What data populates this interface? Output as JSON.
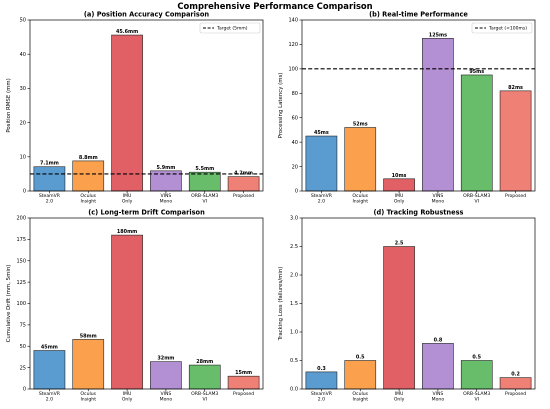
{
  "title": "Comprehensive Performance Comparison",
  "colors": {
    "steamvr": "#5a9bd0",
    "oculus": "#fba14e",
    "imu": "#e06066",
    "vins": "#b38fd4",
    "orb": "#67bd6a",
    "proposed": "#ee8076",
    "edge": "#222222",
    "ref_line": "#000000"
  },
  "chart_data": [
    {
      "id": "a",
      "type": "bar",
      "title": "(a) Position Accuracy Comparison",
      "ylabel": "Position RMSE (mm)",
      "categories": [
        "SteamVR\n2.0",
        "Oculus\nInsight",
        "IMU\nOnly",
        "VINS\nMono",
        "ORB-SLAM3\nVI",
        "Proposed"
      ],
      "values": [
        7.1,
        8.8,
        45.6,
        5.9,
        5.5,
        4.2
      ],
      "data_labels": [
        "7.1mm",
        "8.8mm",
        "45.6mm",
        "5.9mm",
        "5.5mm",
        "4.2mm"
      ],
      "ylim": [
        0,
        50
      ],
      "yticks": [
        0,
        10,
        20,
        30,
        40,
        50
      ],
      "reference_line": {
        "value": 5,
        "label": "Target (5mm)"
      },
      "legend_position": "top-right",
      "grid": false
    },
    {
      "id": "b",
      "type": "bar",
      "title": "(b) Real-time Performance",
      "ylabel": "Processing Latency (ms)",
      "categories": [
        "SteamVR\n2.0",
        "Oculus\nInsight",
        "IMU\nOnly",
        "VINS\nMono",
        "ORB-SLAM3\nVI",
        "Proposed"
      ],
      "values": [
        45,
        52,
        10,
        125,
        95,
        82
      ],
      "data_labels": [
        "45ms",
        "52ms",
        "10ms",
        "125ms",
        "95ms",
        "82ms"
      ],
      "ylim": [
        0,
        140
      ],
      "yticks": [
        0,
        20,
        40,
        60,
        80,
        100,
        120,
        140
      ],
      "reference_line": {
        "value": 100,
        "label": "Target (<100ms)"
      },
      "legend_position": "top-right",
      "grid": false
    },
    {
      "id": "c",
      "type": "bar",
      "title": "(c) Long-term Drift Comparison",
      "ylabel": "Cumulative Drift (mm, 5min)",
      "categories": [
        "SteamVR\n2.0",
        "Oculus\nInsight",
        "IMU\nOnly",
        "VINS\nMono",
        "ORB-SLAM3\nVI",
        "Proposed"
      ],
      "values": [
        45,
        58,
        180,
        32,
        28,
        15
      ],
      "data_labels": [
        "45mm",
        "58mm",
        "180mm",
        "32mm",
        "28mm",
        "15mm"
      ],
      "ylim": [
        0,
        200
      ],
      "yticks": [
        0,
        25,
        50,
        75,
        100,
        125,
        150,
        175,
        200
      ],
      "grid": false
    },
    {
      "id": "d",
      "type": "bar",
      "title": "(d) Tracking Robustness",
      "ylabel": "Tracking Loss (failures/min)",
      "categories": [
        "SteamVR\n2.0",
        "Oculus\nInsight",
        "IMU\nOnly",
        "VINS\nMono",
        "ORB-SLAM3\nVI",
        "Proposed"
      ],
      "values": [
        0.3,
        0.5,
        2.5,
        0.8,
        0.5,
        0.2
      ],
      "data_labels": [
        "0.3",
        "0.5",
        "2.5",
        "0.8",
        "0.5",
        "0.2"
      ],
      "ylim": [
        0,
        3.0
      ],
      "yticks": [
        0.0,
        0.5,
        1.0,
        1.5,
        2.0,
        2.5,
        3.0
      ],
      "grid": false
    }
  ]
}
